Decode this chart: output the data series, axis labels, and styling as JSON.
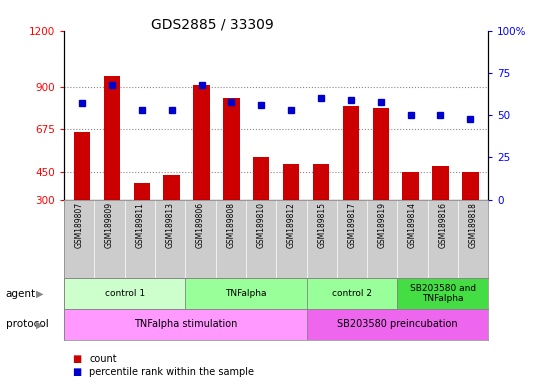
{
  "title": "GDS2885 / 33309",
  "samples": [
    "GSM189807",
    "GSM189809",
    "GSM189811",
    "GSM189813",
    "GSM189806",
    "GSM189808",
    "GSM189810",
    "GSM189812",
    "GSM189815",
    "GSM189817",
    "GSM189819",
    "GSM189814",
    "GSM189816",
    "GSM189818"
  ],
  "counts": [
    660,
    960,
    390,
    430,
    910,
    840,
    530,
    490,
    490,
    800,
    790,
    450,
    480,
    450
  ],
  "percentiles": [
    57,
    68,
    53,
    53,
    68,
    58,
    56,
    53,
    60,
    59,
    58,
    50,
    50,
    48
  ],
  "ylim_left": [
    300,
    1200
  ],
  "ylim_right": [
    0,
    100
  ],
  "yticks_left": [
    300,
    450,
    675,
    900,
    1200
  ],
  "yticks_right": [
    0,
    25,
    50,
    75,
    100
  ],
  "bar_color": "#cc0000",
  "dot_color": "#0000cc",
  "agent_groups": [
    {
      "label": "control 1",
      "start": 0,
      "end": 4,
      "color": "#ccffcc"
    },
    {
      "label": "TNFalpha",
      "start": 4,
      "end": 8,
      "color": "#99ff99"
    },
    {
      "label": "control 2",
      "start": 8,
      "end": 11,
      "color": "#88ee88"
    },
    {
      "label": "SB203580 and\nTNFalpha",
      "start": 11,
      "end": 14,
      "color": "#44cc44"
    }
  ],
  "protocol_groups": [
    {
      "label": "TNFalpha stimulation",
      "start": 0,
      "end": 8,
      "color": "#ee99ee"
    },
    {
      "label": "SB203580 preincubation",
      "start": 8,
      "end": 14,
      "color": "#cc66cc"
    }
  ],
  "background_color": "#ffffff",
  "grid_color": "#888888",
  "sample_bg_color": "#cccccc",
  "agent_label_color": "#000000",
  "protocol_label_color": "#000000"
}
